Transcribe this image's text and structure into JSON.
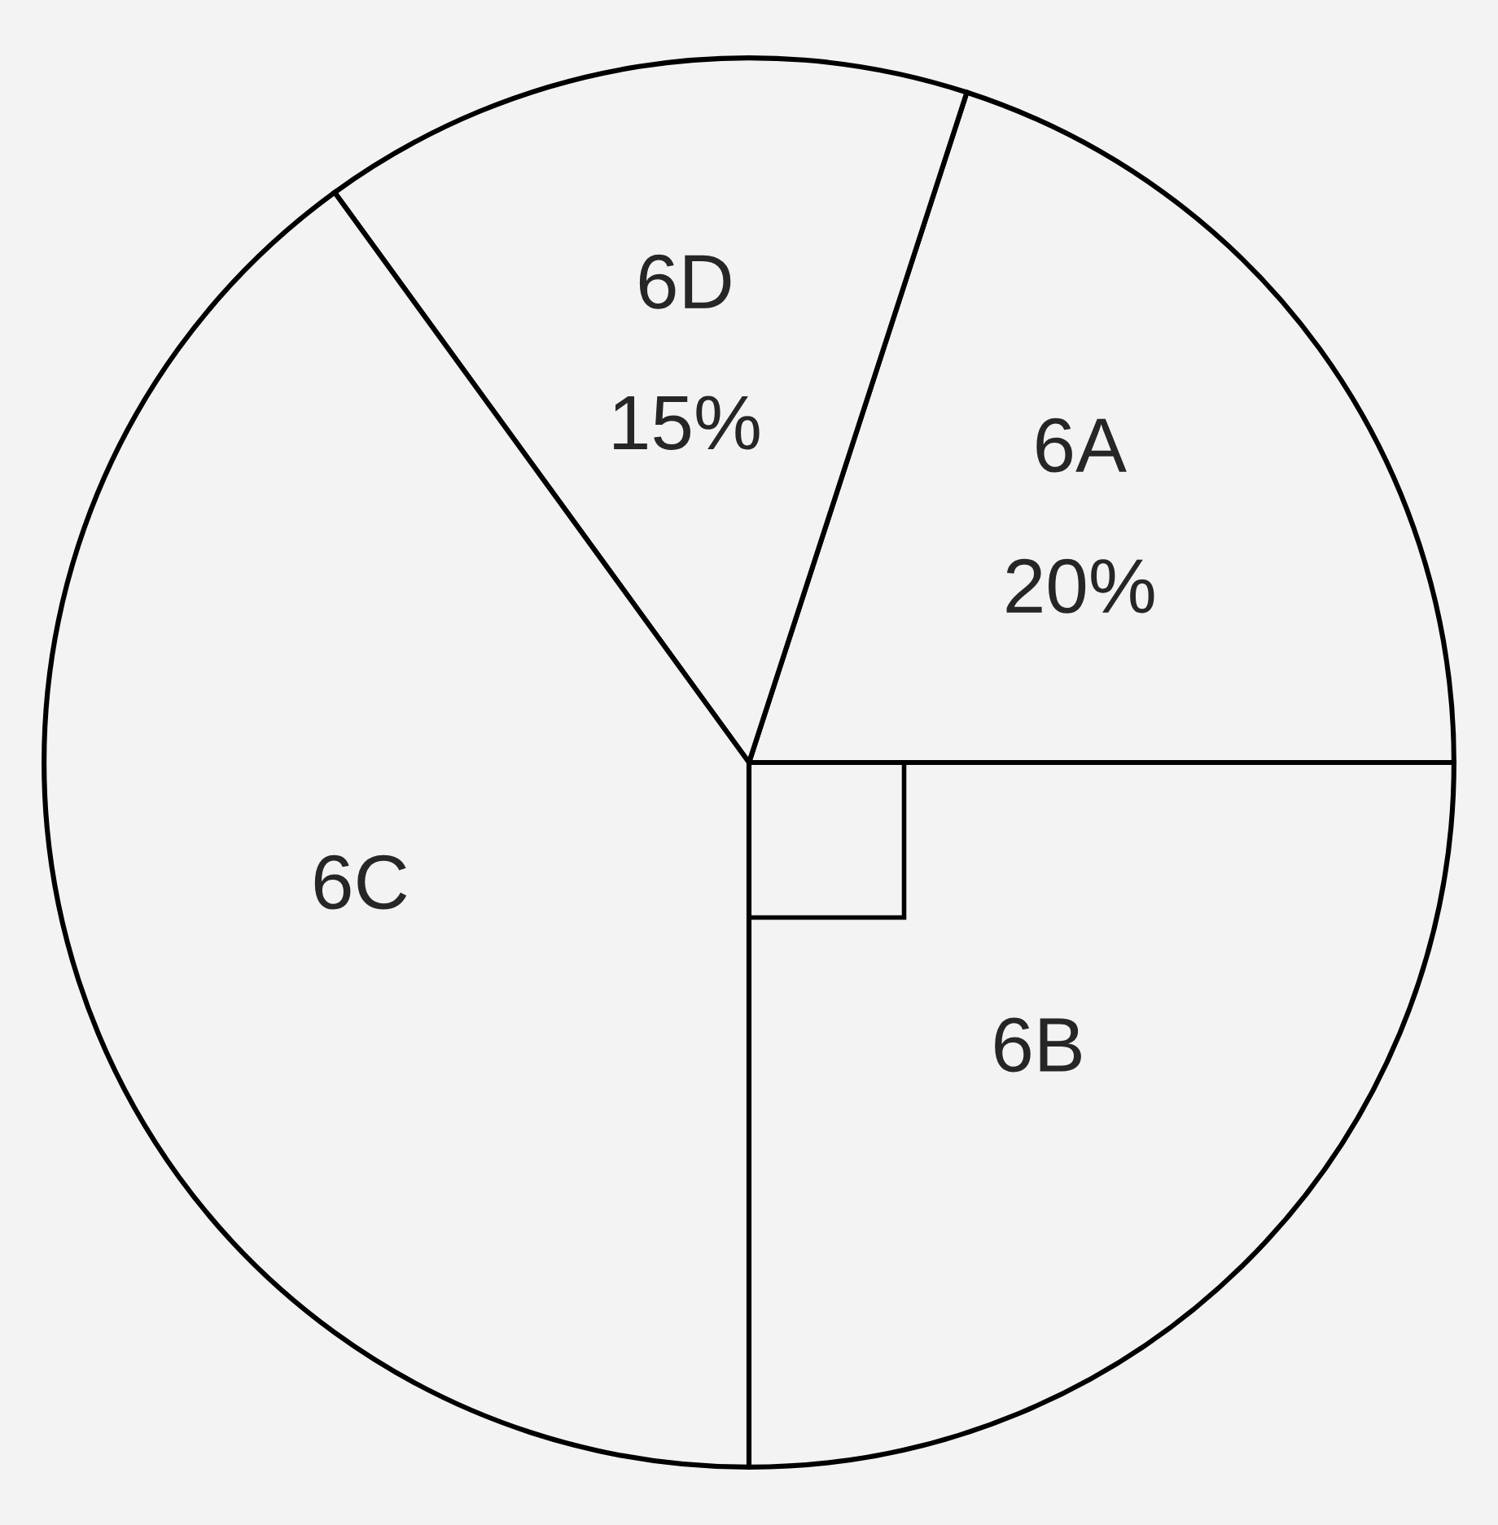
{
  "chart_data": {
    "type": "pie",
    "categories": [
      "6A",
      "6D",
      "6C",
      "6B"
    ],
    "values": [
      20,
      15,
      40,
      25
    ],
    "colors": [
      "#f3f3f3",
      "#f3f3f3",
      "#f3f3f3",
      "#f3f3f3"
    ],
    "value_labels": [
      "20%",
      "15%",
      null,
      null
    ]
  }
}
